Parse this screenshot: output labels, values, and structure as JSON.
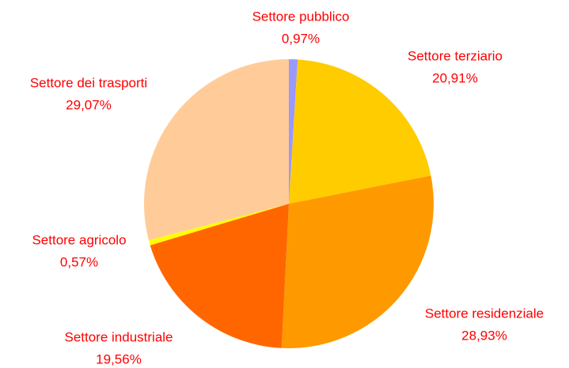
{
  "chart_data": {
    "type": "pie",
    "categories": [
      "Settore pubblico",
      "Settore terziario",
      "Settore residenziale",
      "Settore industriale",
      "Settore agricolo",
      "Settore dei trasporti"
    ],
    "values": [
      0.97,
      20.91,
      28.93,
      19.56,
      0.57,
      29.07
    ],
    "value_labels": [
      "0,97%",
      "20,91%",
      "28,93%",
      "19,56%",
      "0,57%",
      "29,07%"
    ],
    "colors": [
      "#9999ff",
      "#ffcc00",
      "#ff9900",
      "#ff6600",
      "#ffff00",
      "#ffcc99"
    ]
  }
}
